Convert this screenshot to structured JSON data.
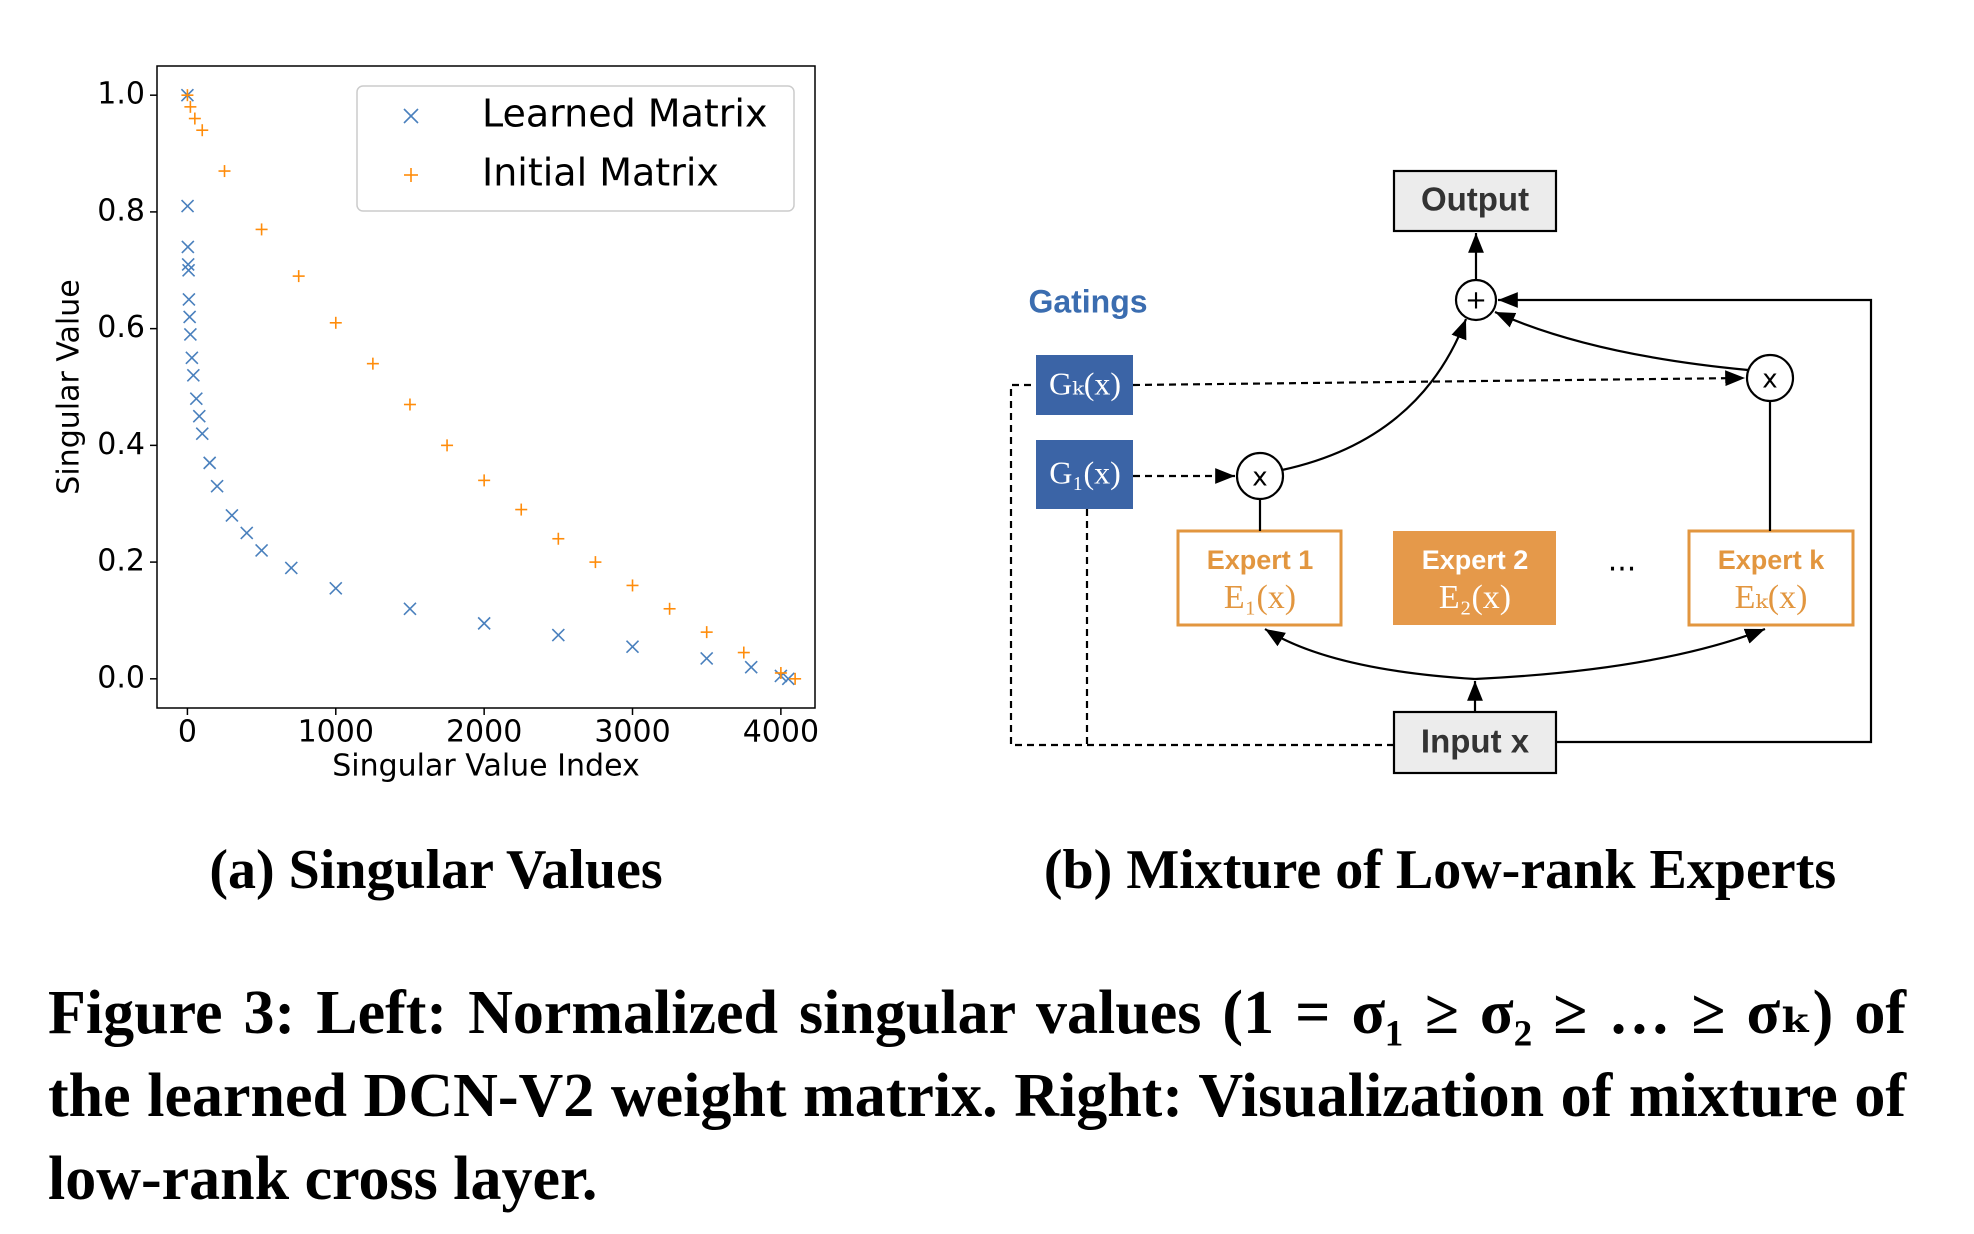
{
  "chart_data": {
    "type": "scatter",
    "xlabel": "Singular Value Index",
    "ylabel": "Singular Value",
    "xlim": [
      -205,
      4230
    ],
    "ylim": [
      -0.05,
      1.05
    ],
    "xticks": [
      0,
      1000,
      2000,
      3000,
      4000
    ],
    "yticks": [
      {
        "value": 0,
        "label": "0.0"
      },
      0.2,
      0.4,
      0.6,
      0.8,
      {
        "value": 1,
        "label": "1.0"
      }
    ],
    "legend": "upper right",
    "series": [
      {
        "name": "Learned Matrix",
        "color": "#4a80bd",
        "marker": "x",
        "x": [
          0,
          1,
          3,
          5,
          8,
          10,
          15,
          20,
          30,
          40,
          60,
          80,
          100,
          150,
          200,
          300,
          400,
          500,
          700,
          1000,
          1500,
          2000,
          2500,
          3000,
          3500,
          3800,
          4000,
          4050
        ],
        "values": [
          1.0,
          0.81,
          0.74,
          0.71,
          0.7,
          0.65,
          0.62,
          0.59,
          0.55,
          0.52,
          0.48,
          0.45,
          0.42,
          0.37,
          0.33,
          0.28,
          0.25,
          0.22,
          0.19,
          0.155,
          0.12,
          0.095,
          0.075,
          0.055,
          0.035,
          0.02,
          0.005,
          0
        ]
      },
      {
        "name": "Initial Matrix",
        "color": "#ff8c0a",
        "marker": "+",
        "x": [
          0,
          20,
          50,
          100,
          250,
          500,
          750,
          1000,
          1250,
          1500,
          1750,
          2000,
          2250,
          2500,
          2750,
          3000,
          3250,
          3500,
          3750,
          4000,
          4096
        ],
        "values": [
          1.0,
          0.98,
          0.96,
          0.94,
          0.87,
          0.77,
          0.69,
          0.61,
          0.54,
          0.47,
          0.4,
          0.34,
          0.29,
          0.24,
          0.2,
          0.16,
          0.12,
          0.08,
          0.045,
          0.01,
          0
        ]
      }
    ]
  },
  "subcaptions": [
    "(a) Singular Values",
    "(b) Mixture of Low-rank Experts"
  ],
  "diagram": {
    "output": "Output",
    "plus": "+",
    "gatings": "Gatings",
    "gate_k": "Gₖ(x)",
    "gate_1": "G₁(x)",
    "mult_1": "x",
    "mult_k": "x",
    "experts": [
      {
        "title": "Expert 1",
        "label": "E₁(x)"
      },
      {
        "title": "Expert 2",
        "label": "E₂(x)"
      },
      {
        "title": "Expert k",
        "label": "Eₖ(x)"
      }
    ],
    "ellipsis": "...",
    "input": "Input x"
  },
  "caption": "Figure 3: Left: Normalized singular values (1 = σ₁ ≥ σ₂ ≥ … ≥ σₖ) of the learned DCN-V2 weight matrix. Right: Visualization of mixture of low-rank cross layer."
}
